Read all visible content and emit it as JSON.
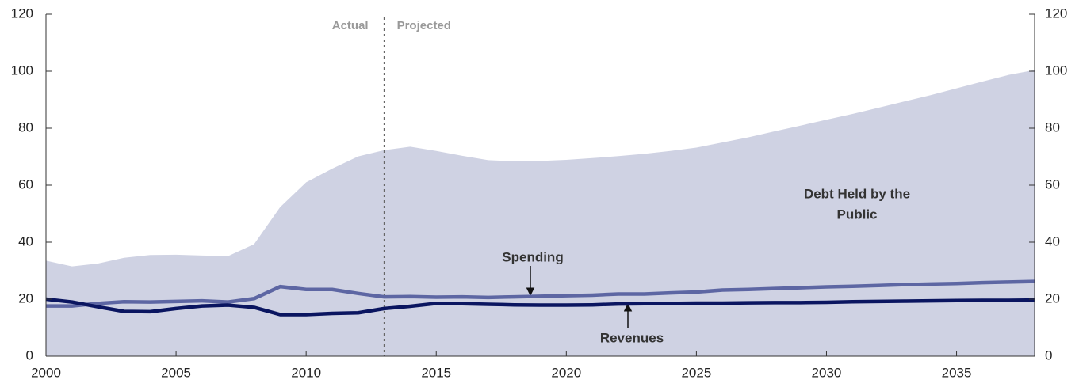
{
  "chart_data": {
    "type": "line",
    "x": [
      2000,
      2001,
      2002,
      2003,
      2004,
      2005,
      2006,
      2007,
      2008,
      2009,
      2010,
      2011,
      2012,
      2013,
      2014,
      2015,
      2016,
      2017,
      2018,
      2019,
      2020,
      2021,
      2022,
      2023,
      2024,
      2025,
      2026,
      2027,
      2028,
      2029,
      2030,
      2031,
      2032,
      2033,
      2034,
      2035,
      2036,
      2037,
      2038
    ],
    "area": {
      "name": [
        "Debt Held by the",
        "Public"
      ],
      "color": "#cfd2e3",
      "values": [
        33.5,
        31.5,
        32.5,
        34.5,
        35.5,
        35.6,
        35.3,
        35.1,
        39.3,
        52.3,
        61,
        65.8,
        70.1,
        72.3,
        73.5,
        72,
        70.3,
        68.8,
        68.4,
        68.5,
        68.9,
        69.5,
        70.2,
        71,
        72,
        73.2,
        75,
        76.8,
        78.9,
        80.9,
        83,
        85,
        87.2,
        89.4,
        91.6,
        94,
        96.4,
        98.7,
        100.4
      ]
    },
    "series": [
      {
        "name": "Spending",
        "color": "#5d66a3",
        "values": [
          17.6,
          17.6,
          18.5,
          19.1,
          19,
          19.2,
          19.4,
          19,
          20.2,
          24.4,
          23.4,
          23.4,
          22,
          20.8,
          20.9,
          20.7,
          20.8,
          20.6,
          20.8,
          21,
          21.2,
          21.4,
          21.8,
          21.8,
          22.2,
          22.5,
          23.2,
          23.4,
          23.7,
          24,
          24.3,
          24.5,
          24.8,
          25.1,
          25.3,
          25.5,
          25.8,
          26,
          26.2
        ]
      },
      {
        "name": "Revenues",
        "color": "#0a1560",
        "values": [
          20,
          19,
          17.3,
          15.7,
          15.6,
          16.7,
          17.6,
          17.9,
          17.1,
          14.6,
          14.6,
          15,
          15.2,
          16.7,
          17.5,
          18.5,
          18.4,
          18.2,
          18,
          17.9,
          17.9,
          18,
          18.3,
          18.4,
          18.5,
          18.6,
          18.6,
          18.7,
          18.8,
          18.8,
          18.9,
          19.1,
          19.2,
          19.3,
          19.4,
          19.5,
          19.6,
          19.6,
          19.7
        ]
      }
    ],
    "projection_start": 2013,
    "actual_label": "Actual",
    "projected_label": "Projected",
    "xlim": [
      2000,
      2038
    ],
    "xticks": [
      2000,
      2005,
      2010,
      2015,
      2020,
      2025,
      2030,
      2035
    ],
    "ylim": [
      0,
      120
    ],
    "yticks": [
      0,
      20,
      40,
      60,
      80,
      100,
      120
    ],
    "y2lim": [
      0,
      120
    ],
    "y2ticks": [
      0,
      20,
      40,
      60,
      80,
      100,
      120
    ]
  }
}
